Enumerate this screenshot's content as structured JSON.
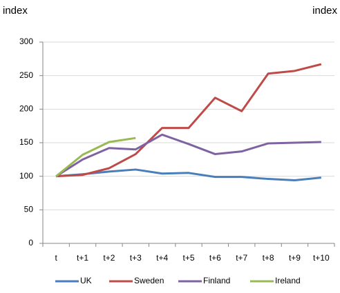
{
  "chart_data": {
    "type": "line",
    "y_label": "index",
    "y2_label": "index",
    "categories": [
      "t",
      "t+1",
      "t+2",
      "t+3",
      "t+4",
      "t+5",
      "t+6",
      "t+7",
      "t+8",
      "t+9",
      "t+10"
    ],
    "series": [
      {
        "name": "UK",
        "color": "#4a7ebb",
        "values": [
          100,
          103,
          107,
          110,
          104,
          105,
          99,
          99,
          96,
          94,
          98
        ]
      },
      {
        "name": "Sweden",
        "color": "#be4b48",
        "values": [
          100,
          102,
          112,
          133,
          172,
          172,
          217,
          197,
          253,
          257,
          267
        ]
      },
      {
        "name": "Finland",
        "color": "#7e62a1",
        "values": [
          100,
          125,
          142,
          140,
          162,
          148,
          133,
          137,
          149,
          150,
          151
        ]
      },
      {
        "name": "Ireland",
        "color": "#98b954",
        "values": [
          100,
          132,
          151,
          157,
          null,
          null,
          null,
          null,
          null,
          null,
          null
        ]
      }
    ],
    "ylim": [
      0,
      300
    ],
    "yticks": [
      0,
      50,
      100,
      150,
      200,
      250,
      300
    ],
    "grid": true,
    "legend": "bottom"
  }
}
